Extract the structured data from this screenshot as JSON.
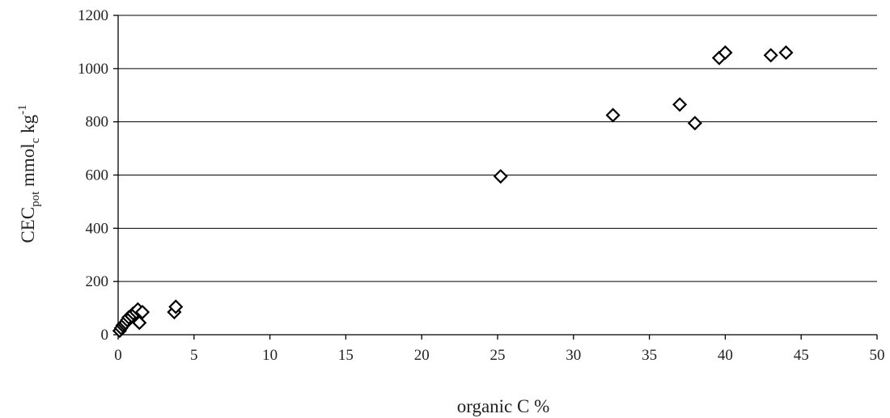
{
  "chart_data": {
    "type": "scatter",
    "title": "",
    "xlabel": "organic C %",
    "ylabel": {
      "base": "CEC",
      "sub1": "pot",
      "middle": " mmol",
      "sub2": "c",
      "unit": " kg",
      "sup": "-1"
    },
    "xlim": [
      0,
      50
    ],
    "ylim": [
      0,
      1200
    ],
    "x_ticks": [
      0,
      5,
      10,
      15,
      20,
      25,
      30,
      35,
      40,
      45,
      50
    ],
    "y_ticks": [
      0,
      200,
      400,
      600,
      800,
      1000,
      1200
    ],
    "grid": "horizontal",
    "legend": "none",
    "marker": "open-diamond",
    "colors": {
      "marker_stroke": "#000000",
      "marker_fill": "#ffffff",
      "grid": "#000000"
    },
    "series": [
      {
        "points": [
          [
            0.1,
            15
          ],
          [
            0.2,
            25
          ],
          [
            0.3,
            35
          ],
          [
            0.4,
            40
          ],
          [
            0.5,
            45
          ],
          [
            0.6,
            55
          ],
          [
            0.7,
            65
          ],
          [
            0.9,
            70
          ],
          [
            1.0,
            80
          ],
          [
            1.2,
            85
          ],
          [
            1.3,
            95
          ],
          [
            1.4,
            45
          ],
          [
            1.6,
            85
          ],
          [
            3.7,
            85
          ],
          [
            3.8,
            105
          ],
          [
            25.2,
            595
          ],
          [
            32.6,
            825
          ],
          [
            37.0,
            865
          ],
          [
            38.0,
            795
          ],
          [
            39.6,
            1040
          ],
          [
            40.0,
            1060
          ],
          [
            43.0,
            1050
          ],
          [
            44.0,
            1060
          ]
        ]
      }
    ]
  }
}
